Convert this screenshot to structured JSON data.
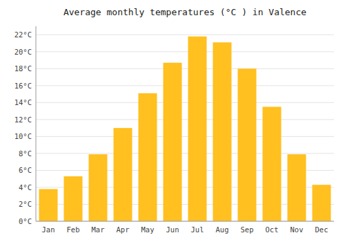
{
  "chart_data": {
    "type": "bar",
    "title": "Average monthly temperatures (°C ) in Valence",
    "categories": [
      "Jan",
      "Feb",
      "Mar",
      "Apr",
      "May",
      "Jun",
      "Jul",
      "Aug",
      "Sep",
      "Oct",
      "Nov",
      "Dec"
    ],
    "values": [
      3.8,
      5.3,
      7.9,
      11.0,
      15.1,
      18.7,
      21.8,
      21.1,
      18.0,
      13.5,
      7.9,
      4.3
    ],
    "color": "#FFC020",
    "ylim": [
      0,
      23
    ],
    "yticks": [
      {
        "value": 0,
        "label": "0°C"
      },
      {
        "value": 2,
        "label": "2°C"
      },
      {
        "value": 4,
        "label": "4°C"
      },
      {
        "value": 6,
        "label": "6°C"
      },
      {
        "value": 8,
        "label": "8°C"
      },
      {
        "value": 10,
        "label": "10°C"
      },
      {
        "value": 12,
        "label": "12°C"
      },
      {
        "value": 14,
        "label": "14°C"
      },
      {
        "value": 16,
        "label": "16°C"
      },
      {
        "value": 18,
        "label": "18°C"
      },
      {
        "value": 20,
        "label": "20°C"
      },
      {
        "value": 22,
        "label": "22°C"
      }
    ],
    "grid": true
  }
}
